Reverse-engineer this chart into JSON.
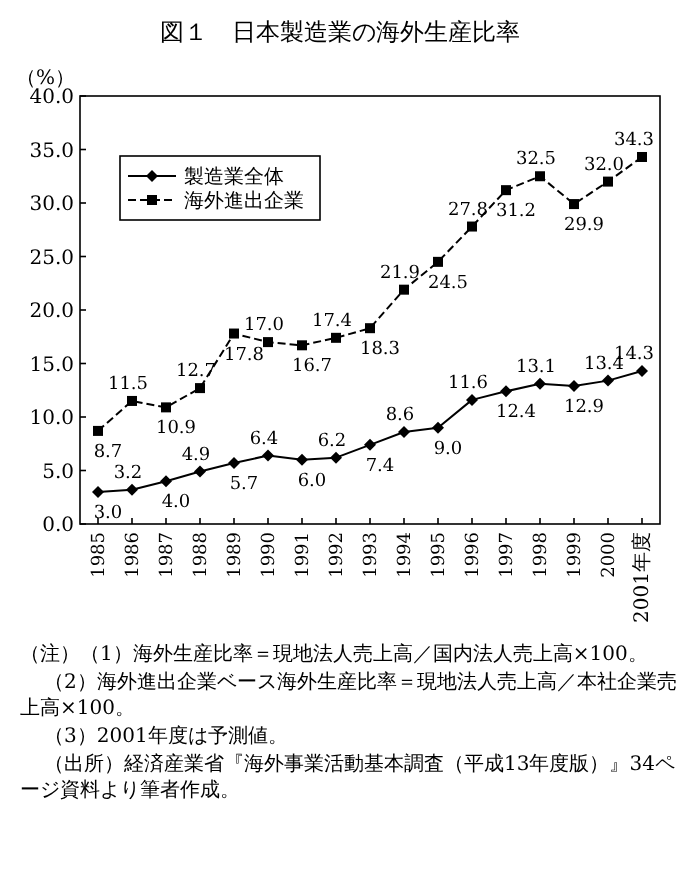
{
  "chart_data": {
    "type": "line",
    "title": "図１　日本製造業の海外生産比率",
    "ylabel": "（%）",
    "categories": [
      "1985",
      "1986",
      "1987",
      "1988",
      "1989",
      "1990",
      "1991",
      "1992",
      "1993",
      "1994",
      "1995",
      "1996",
      "1997",
      "1998",
      "1999",
      "2000",
      "2001年度"
    ],
    "series": [
      {
        "name": "製造業全体",
        "color": "#000000",
        "marker": "diamond",
        "line_style": "solid",
        "values": [
          3.0,
          3.2,
          4.0,
          4.9,
          5.7,
          6.4,
          6.0,
          6.2,
          7.4,
          8.6,
          9.0,
          11.6,
          12.4,
          13.1,
          12.9,
          13.4,
          14.3
        ],
        "value_labels": [
          "3.0",
          "3.2",
          "4.0",
          "4.9",
          "5.7",
          "6.4",
          "6.0",
          "6.2",
          "7.4",
          "8.6",
          "9.0",
          "11.6",
          "12.4",
          "13.1",
          "12.9",
          "13.4",
          "14.3"
        ]
      },
      {
        "name": "海外進出企業",
        "color": "#000000",
        "marker": "square",
        "line_style": "dashed",
        "values": [
          8.7,
          11.5,
          10.9,
          12.7,
          17.8,
          17.0,
          16.7,
          17.4,
          18.3,
          21.9,
          24.5,
          27.8,
          31.2,
          32.5,
          29.9,
          32.0,
          34.3
        ],
        "value_labels": [
          "8.7",
          "11.5",
          "10.9",
          "12.7",
          "17.8",
          "17.0",
          "16.7",
          "17.4",
          "18.3",
          "21.9",
          "24.5",
          "27.8",
          "31.2",
          "32.5",
          "29.9",
          "32.0",
          "34.3"
        ]
      }
    ],
    "ylim": [
      0,
      40
    ],
    "yticks": [
      {
        "value": 0,
        "label": "0.0"
      },
      {
        "value": 5,
        "label": "5.0"
      },
      {
        "value": 10,
        "label": "10.0"
      },
      {
        "value": 15,
        "label": "15.0"
      },
      {
        "value": 20,
        "label": "20.0"
      },
      {
        "value": 25,
        "label": "25.0"
      },
      {
        "value": 30,
        "label": "30.0"
      },
      {
        "value": 35,
        "label": "35.0"
      },
      {
        "value": 40,
        "label": "40.0"
      }
    ],
    "grid": false,
    "legend": "top left",
    "annotations": [
      "（注）（1）海外生産比率＝現地法人売上高／国内法人売上高×100。",
      "（2）海外進出企業ベース海外生産比率＝現地法人売上高／本社企業売上高×100。",
      "（3）2001年度は予測値。",
      "（出所）経済産業省『海外事業活動基本調査（平成13年度版）』34ページ資料より筆者作成。"
    ]
  }
}
